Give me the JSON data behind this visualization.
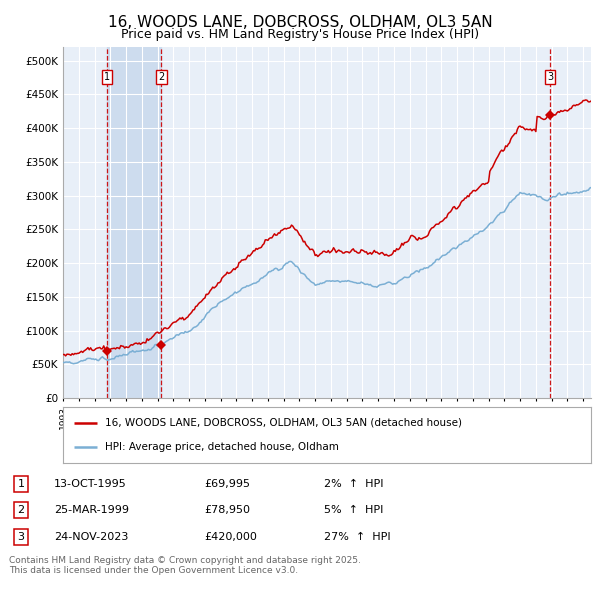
{
  "title": "16, WOODS LANE, DOBCROSS, OLDHAM, OL3 5AN",
  "subtitle": "Price paid vs. HM Land Registry's House Price Index (HPI)",
  "ylabel_ticks": [
    "£0",
    "£50K",
    "£100K",
    "£150K",
    "£200K",
    "£250K",
    "£300K",
    "£350K",
    "£400K",
    "£450K",
    "£500K"
  ],
  "ytick_values": [
    0,
    50000,
    100000,
    150000,
    200000,
    250000,
    300000,
    350000,
    400000,
    450000,
    500000
  ],
  "ylim": [
    0,
    520000
  ],
  "xlim_start": 1993.0,
  "xlim_end": 2026.5,
  "sale_dates": [
    1995.79,
    1999.24,
    2023.9
  ],
  "sale_prices": [
    69995,
    78950,
    420000
  ],
  "sale_labels": [
    "1",
    "2",
    "3"
  ],
  "sale_pct": [
    "2%",
    "5%",
    "27%"
  ],
  "sale_date_str": [
    "13-OCT-1995",
    "25-MAR-1999",
    "24-NOV-2023"
  ],
  "sale_price_str": [
    "£69,995",
    "£78,950",
    "£420,000"
  ],
  "legend_line1": "16, WOODS LANE, DOBCROSS, OLDHAM, OL3 5AN (detached house)",
  "legend_line2": "HPI: Average price, detached house, Oldham",
  "footer": "Contains HM Land Registry data © Crown copyright and database right 2025.\nThis data is licensed under the Open Government Licence v3.0.",
  "line_color_red": "#cc0000",
  "line_color_blue": "#7bafd4",
  "bg_plot": "#e8eff8",
  "bg_highlight": "#cddcee",
  "grid_color": "#ffffff",
  "label_box_color": "#cc0000",
  "dashed_line_color": "#cc0000",
  "title_fontsize": 11,
  "subtitle_fontsize": 9,
  "tick_fontsize": 7.5,
  "legend_fontsize": 7.5,
  "footer_fontsize": 6.5
}
